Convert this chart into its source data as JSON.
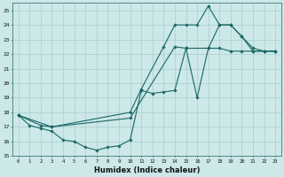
{
  "xlabel": "Humidex (Indice chaleur)",
  "bg_color": "#cce8e8",
  "grid_color": "#aacccc",
  "line_color": "#1a6666",
  "xlim": [
    -0.5,
    23.5
  ],
  "ylim": [
    15,
    25.5
  ],
  "yticks": [
    15,
    16,
    17,
    18,
    19,
    20,
    21,
    22,
    23,
    24,
    25
  ],
  "xticks": [
    0,
    1,
    2,
    3,
    4,
    5,
    6,
    7,
    8,
    9,
    10,
    11,
    12,
    13,
    14,
    15,
    16,
    17,
    18,
    19,
    20,
    21,
    22,
    23
  ],
  "line1_x": [
    0,
    1,
    2,
    3,
    4,
    5,
    6,
    7,
    8,
    9,
    10,
    11,
    12,
    13,
    14,
    15,
    16,
    17,
    18,
    19,
    20,
    21,
    22,
    23
  ],
  "line1_y": [
    17.8,
    17.1,
    16.9,
    16.7,
    16.1,
    16.0,
    15.6,
    15.4,
    15.6,
    15.7,
    16.1,
    19.5,
    19.3,
    19.4,
    19.5,
    22.4,
    19.0,
    22.4,
    22.4,
    22.2,
    22.2,
    22.2,
    22.2,
    22.2
  ],
  "line2_x": [
    0,
    2,
    3,
    10,
    11,
    13,
    14,
    15,
    16,
    17,
    18,
    19,
    20,
    21,
    22,
    23
  ],
  "line2_y": [
    17.8,
    17.1,
    17.0,
    18.0,
    19.6,
    22.5,
    24.0,
    24.0,
    24.0,
    25.3,
    24.0,
    24.0,
    23.2,
    22.4,
    22.2,
    22.2
  ],
  "line3_x": [
    0,
    3,
    10,
    14,
    15,
    17,
    18,
    19,
    20,
    21,
    22,
    23
  ],
  "line3_y": [
    17.8,
    17.0,
    17.6,
    22.5,
    22.4,
    22.4,
    24.0,
    24.0,
    23.2,
    22.2,
    22.2,
    22.2
  ]
}
